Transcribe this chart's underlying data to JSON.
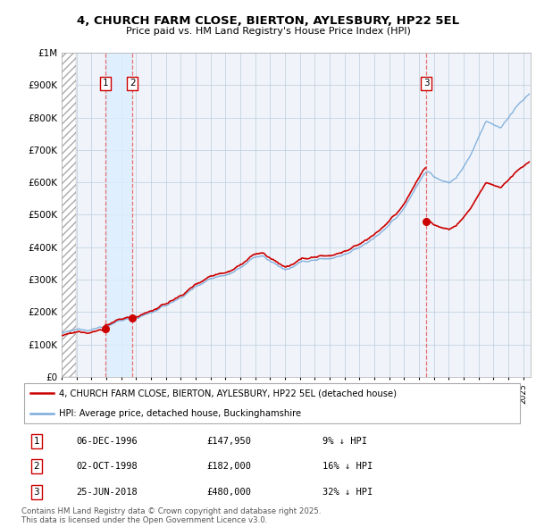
{
  "title_line1": "4, CHURCH FARM CLOSE, BIERTON, AYLESBURY, HP22 5EL",
  "title_line2": "Price paid vs. HM Land Registry's House Price Index (HPI)",
  "xlim_start": 1994.0,
  "xlim_end": 2025.5,
  "ylim_min": 0,
  "ylim_max": 1000000,
  "yticks": [
    0,
    100000,
    200000,
    300000,
    400000,
    500000,
    600000,
    700000,
    800000,
    900000,
    1000000
  ],
  "ytick_labels": [
    "£0",
    "£100K",
    "£200K",
    "£300K",
    "£400K",
    "£500K",
    "£600K",
    "£700K",
    "£800K",
    "£900K",
    "£1M"
  ],
  "sale_dates": [
    1996.92,
    1998.75,
    2018.48
  ],
  "sale_prices": [
    147950,
    182000,
    480000
  ],
  "sale_labels": [
    "1",
    "2",
    "3"
  ],
  "hpi_color": "#7aabdb",
  "price_color": "#cc0000",
  "dashed_line_color": "#e87070",
  "highlight_color": "#ddeeff",
  "legend_label_price": "4, CHURCH FARM CLOSE, BIERTON, AYLESBURY, HP22 5EL (detached house)",
  "legend_label_hpi": "HPI: Average price, detached house, Buckinghamshire",
  "table_entries": [
    {
      "label": "1",
      "date": "06-DEC-1996",
      "price": "£147,950",
      "rel": "9% ↓ HPI"
    },
    {
      "label": "2",
      "date": "02-OCT-1998",
      "price": "£182,000",
      "rel": "16% ↓ HPI"
    },
    {
      "label": "3",
      "date": "25-JUN-2018",
      "price": "£480,000",
      "rel": "32% ↓ HPI"
    }
  ],
  "footnote": "Contains HM Land Registry data © Crown copyright and database right 2025.\nThis data is licensed under the Open Government Licence v3.0."
}
